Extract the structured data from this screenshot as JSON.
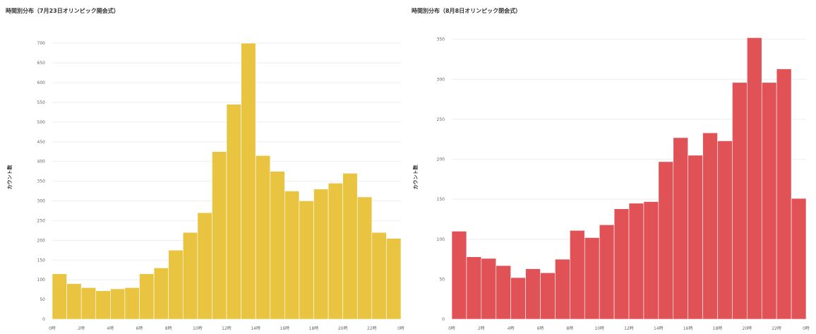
{
  "chart_data": [
    {
      "type": "bar",
      "title": "時間別分布（7月23日オリンピック開会式）",
      "ylabel": "カウント数",
      "xlabel": "",
      "color": "#e9c440",
      "grid": true,
      "legend": "none",
      "ylim": [
        0,
        720
      ],
      "yticks": [
        "0",
        "50",
        "100",
        "150",
        "200",
        "250",
        "300",
        "350",
        "400",
        "450",
        "500",
        "550",
        "600",
        "650",
        "700"
      ],
      "xticks": [
        {
          "hour": 0,
          "label": "0時"
        },
        {
          "hour": 2,
          "label": "2時"
        },
        {
          "hour": 4,
          "label": "4時"
        },
        {
          "hour": 6,
          "label": "6時"
        },
        {
          "hour": 8,
          "label": "8時"
        },
        {
          "hour": 10,
          "label": "10時"
        },
        {
          "hour": 12,
          "label": "12時"
        },
        {
          "hour": 14,
          "label": "14時"
        },
        {
          "hour": 16,
          "label": "16時"
        },
        {
          "hour": 18,
          "label": "18時"
        },
        {
          "hour": 20,
          "label": "20時"
        },
        {
          "hour": 22,
          "label": "22時"
        },
        {
          "hour": 24,
          "label": "0時"
        }
      ],
      "x": [
        0,
        1,
        2,
        3,
        4,
        5,
        6,
        7,
        8,
        9,
        10,
        11,
        12,
        13,
        14,
        15,
        16,
        17,
        18,
        19,
        20,
        21,
        22,
        23
      ],
      "values": [
        115,
        90,
        80,
        72,
        77,
        80,
        115,
        130,
        175,
        220,
        270,
        425,
        545,
        700,
        415,
        375,
        325,
        300,
        330,
        345,
        370,
        310,
        220,
        205
      ]
    },
    {
      "type": "bar",
      "title": "時間別分布（8月8日オリンピック閉会式）",
      "ylabel": "カウント数",
      "xlabel": "",
      "color": "#e05256",
      "grid": true,
      "legend": "none",
      "ylim": [
        0,
        355
      ],
      "yticks": [
        "0",
        "50",
        "100",
        "150",
        "200",
        "250",
        "300",
        "350"
      ],
      "xticks": [
        {
          "hour": 0,
          "label": "0時"
        },
        {
          "hour": 2,
          "label": "2時"
        },
        {
          "hour": 4,
          "label": "4時"
        },
        {
          "hour": 6,
          "label": "6時"
        },
        {
          "hour": 8,
          "label": "8時"
        },
        {
          "hour": 10,
          "label": "10時"
        },
        {
          "hour": 12,
          "label": "12時"
        },
        {
          "hour": 14,
          "label": "14時"
        },
        {
          "hour": 16,
          "label": "16時"
        },
        {
          "hour": 18,
          "label": "18時"
        },
        {
          "hour": 20,
          "label": "20時"
        },
        {
          "hour": 22,
          "label": "22時"
        },
        {
          "hour": 24,
          "label": "0時"
        }
      ],
      "x": [
        0,
        1,
        2,
        3,
        4,
        5,
        6,
        7,
        8,
        9,
        10,
        11,
        12,
        13,
        14,
        15,
        16,
        17,
        18,
        19,
        20,
        21,
        22,
        23
      ],
      "values": [
        110,
        78,
        76,
        67,
        52,
        63,
        58,
        75,
        111,
        102,
        118,
        138,
        145,
        147,
        197,
        227,
        205,
        233,
        223,
        296,
        352,
        296,
        313,
        151
      ]
    }
  ]
}
